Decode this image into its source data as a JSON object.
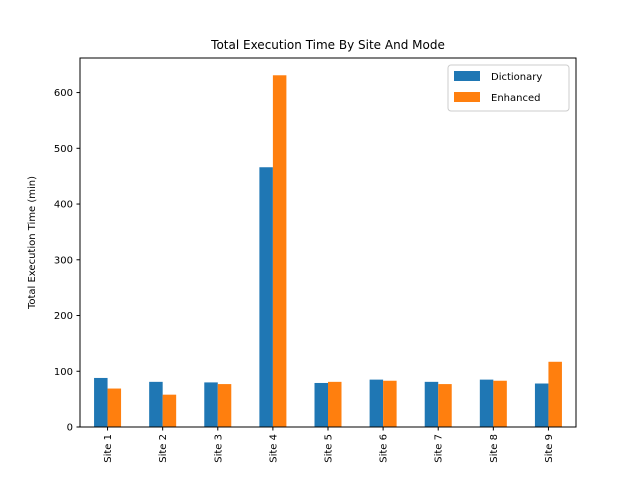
{
  "chart_data": {
    "type": "bar",
    "title": "Total Execution Time By Site And Mode",
    "xlabel": "",
    "ylabel": "Total Execution Time (min)",
    "categories": [
      "Site 1",
      "Site 2",
      "Site 3",
      "Site 4",
      "Site 5",
      "Site 6",
      "Site 7",
      "Site 8",
      "Site 9"
    ],
    "series": [
      {
        "name": "Dictionary",
        "color": "#1f77b4",
        "values": [
          88,
          81,
          80,
          466,
          79,
          85,
          81,
          85,
          78
        ]
      },
      {
        "name": "Enhanced",
        "color": "#ff7f0e",
        "values": [
          69,
          58,
          77,
          631,
          81,
          83,
          77,
          83,
          117
        ]
      }
    ],
    "ylim": [
      0,
      662
    ],
    "yticks": [
      0,
      100,
      200,
      300,
      400,
      500,
      600
    ],
    "grid": false,
    "legend_position": "top-right"
  }
}
